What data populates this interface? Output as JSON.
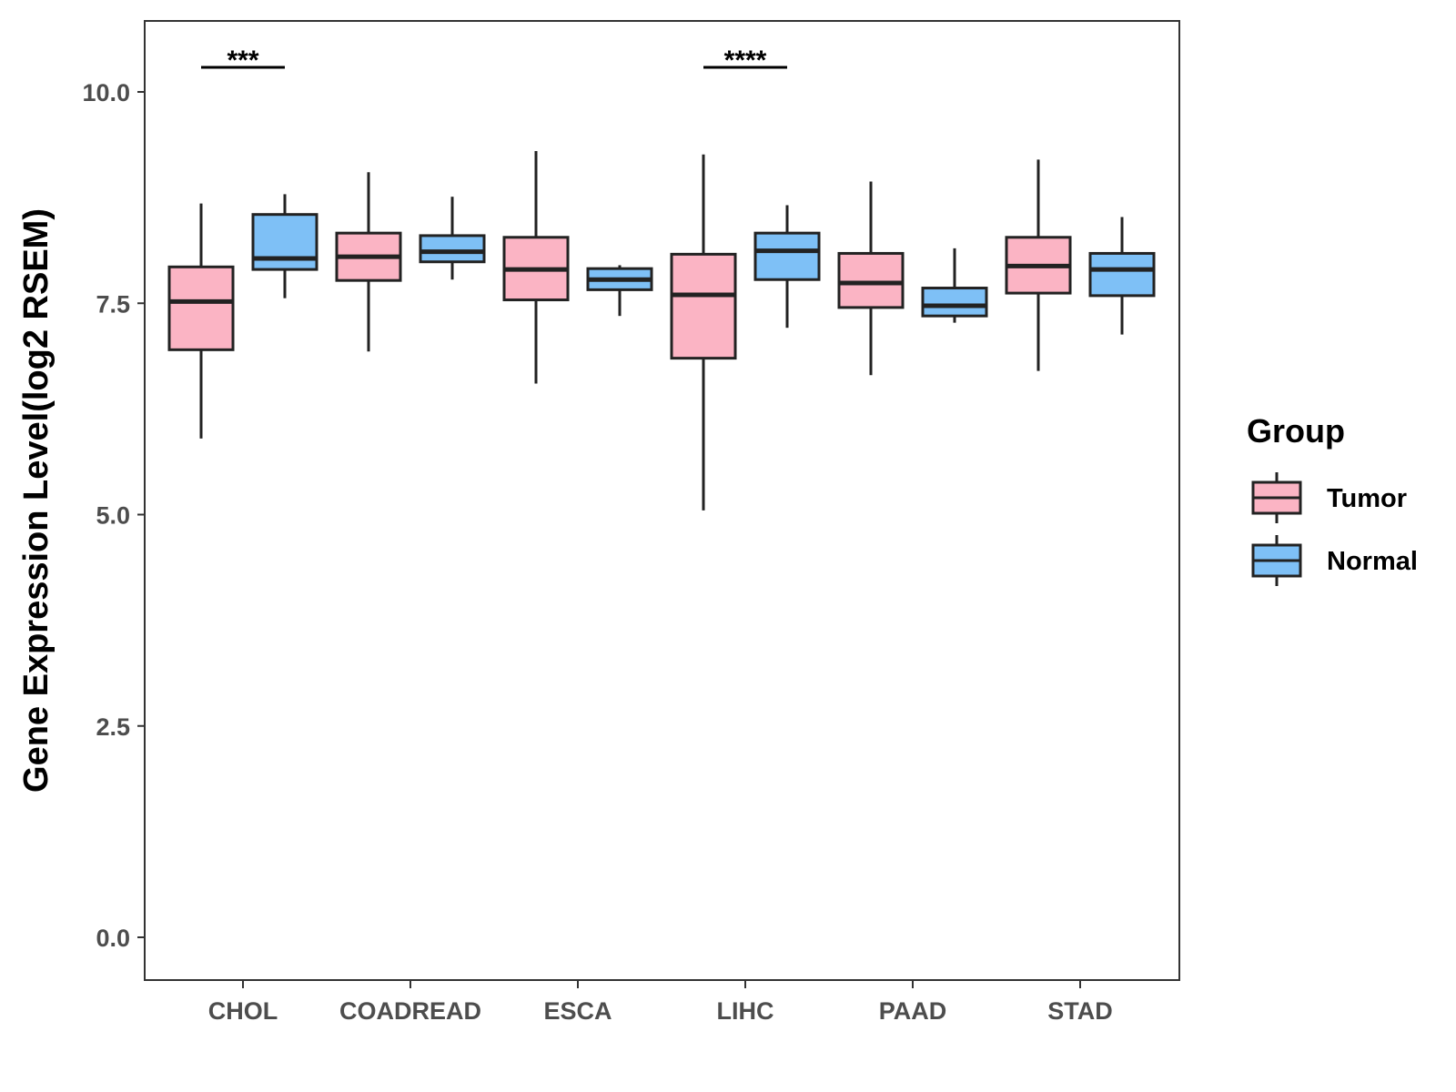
{
  "chart_data": {
    "type": "boxplot",
    "title": "",
    "xlabel": "",
    "ylabel": "Gene Expression Level(log2 RSEM)",
    "ylim": [
      -0.5,
      10.85
    ],
    "yticks": [
      "0.0",
      "2.5",
      "5.0",
      "7.5",
      "10.0"
    ],
    "ytick_values": [
      0,
      2.5,
      5,
      7.5,
      10
    ],
    "grid": false,
    "legend": {
      "title": "Group",
      "position": "right",
      "entries": [
        {
          "label": "Tumor",
          "color": "#fbb4c4"
        },
        {
          "label": "Normal",
          "color": "#7ec0f6"
        }
      ]
    },
    "categories": [
      "CHOL",
      "COADREAD",
      "ESCA",
      "LIHC",
      "PAAD",
      "STAD"
    ],
    "series": [
      {
        "name": "Tumor",
        "color": "#fbb4c4",
        "boxes": [
          {
            "min": 5.9,
            "q1": 6.95,
            "median": 7.52,
            "q3": 7.93,
            "max": 8.68
          },
          {
            "min": 6.93,
            "q1": 7.77,
            "median": 8.05,
            "q3": 8.33,
            "max": 9.05
          },
          {
            "min": 6.55,
            "q1": 7.54,
            "median": 7.9,
            "q3": 8.28,
            "max": 9.3
          },
          {
            "min": 5.05,
            "q1": 6.85,
            "median": 7.6,
            "q3": 8.08,
            "max": 9.26
          },
          {
            "min": 6.65,
            "q1": 7.45,
            "median": 7.74,
            "q3": 8.09,
            "max": 8.94
          },
          {
            "min": 6.7,
            "q1": 7.62,
            "median": 7.94,
            "q3": 8.28,
            "max": 9.2
          }
        ]
      },
      {
        "name": "Normal",
        "color": "#7ec0f6",
        "boxes": [
          {
            "min": 7.56,
            "q1": 7.9,
            "median": 8.03,
            "q3": 8.55,
            "max": 8.79
          },
          {
            "min": 7.78,
            "q1": 7.99,
            "median": 8.11,
            "q3": 8.3,
            "max": 8.76
          },
          {
            "min": 7.35,
            "q1": 7.66,
            "median": 7.78,
            "q3": 7.91,
            "max": 7.95
          },
          {
            "min": 7.21,
            "q1": 7.78,
            "median": 8.12,
            "q3": 8.33,
            "max": 8.66
          },
          {
            "min": 7.27,
            "q1": 7.35,
            "median": 7.47,
            "q3": 7.68,
            "max": 8.15
          },
          {
            "min": 7.13,
            "q1": 7.59,
            "median": 7.9,
            "q3": 8.09,
            "max": 8.52
          }
        ]
      }
    ],
    "annotations": [
      {
        "category": "CHOL",
        "text": "***",
        "y": 10.29
      },
      {
        "category": "LIHC",
        "text": "****",
        "y": 10.29
      }
    ]
  }
}
